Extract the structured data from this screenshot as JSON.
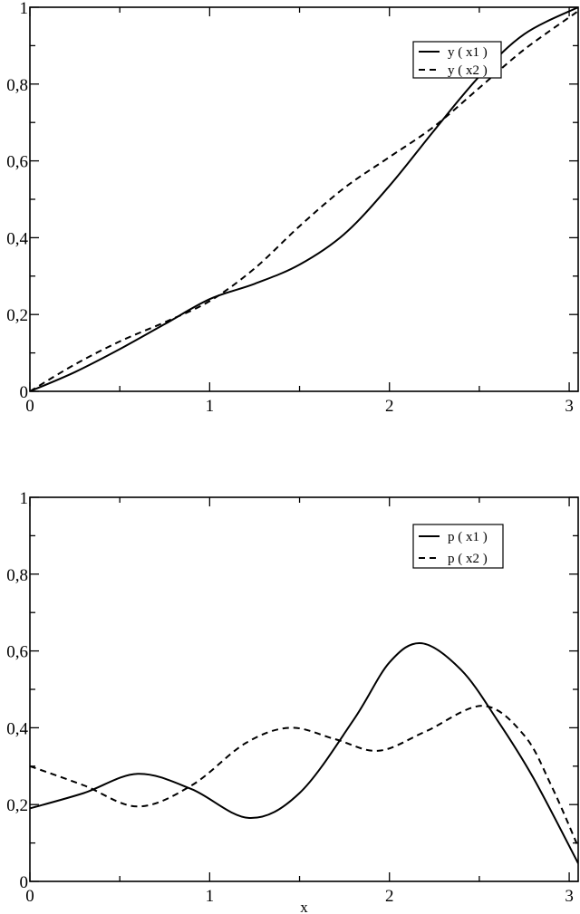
{
  "chart_data": [
    {
      "type": "line",
      "title": "",
      "xlabel": "",
      "ylabel": "",
      "xlim": [
        0,
        3.05
      ],
      "ylim": [
        0,
        1
      ],
      "grid": false,
      "legend_position": "upper right",
      "x_ticks": [
        0,
        1,
        2,
        3
      ],
      "x_tick_labels": [
        "0",
        "1",
        "2",
        "3"
      ],
      "y_ticks": [
        0,
        0.2,
        0.4,
        0.6,
        0.8,
        1
      ],
      "y_tick_labels": [
        "0",
        "0,2",
        "0,4",
        "0,6",
        "0,8",
        "1"
      ],
      "series": [
        {
          "name": "y ( x1 )",
          "style": "solid",
          "x": [
            0,
            0.25,
            0.5,
            0.75,
            1.0,
            1.25,
            1.5,
            1.75,
            2.0,
            2.25,
            2.5,
            2.75,
            3.05
          ],
          "values": [
            0,
            0.05,
            0.11,
            0.175,
            0.24,
            0.28,
            0.33,
            0.41,
            0.535,
            0.68,
            0.82,
            0.93,
            1.0
          ]
        },
        {
          "name": "y ( x2 )",
          "style": "dashed",
          "x": [
            0,
            0.25,
            0.5,
            0.75,
            1.0,
            1.25,
            1.5,
            1.75,
            2.0,
            2.25,
            2.5,
            2.75,
            3.05
          ],
          "values": [
            0,
            0.07,
            0.13,
            0.18,
            0.235,
            0.32,
            0.43,
            0.53,
            0.61,
            0.69,
            0.79,
            0.89,
            0.99
          ]
        }
      ]
    },
    {
      "type": "line",
      "title": "",
      "xlabel": "x",
      "ylabel": "",
      "xlim": [
        0,
        3.05
      ],
      "ylim": [
        0,
        1
      ],
      "grid": false,
      "legend_position": "upper right",
      "x_ticks": [
        0,
        1,
        2,
        3
      ],
      "x_tick_labels": [
        "0",
        "1",
        "2",
        "3"
      ],
      "y_ticks": [
        0,
        0.2,
        0.4,
        0.6,
        0.8,
        1
      ],
      "y_tick_labels": [
        "0",
        "0,2",
        "0,4",
        "0,6",
        "0,8",
        "1"
      ],
      "series": [
        {
          "name": "p ( x1 )",
          "style": "solid",
          "x": [
            0,
            0.3,
            0.6,
            0.9,
            1.22,
            1.5,
            1.8,
            2.0,
            2.18,
            2.4,
            2.6,
            2.8,
            3.05
          ],
          "values": [
            0.19,
            0.23,
            0.28,
            0.24,
            0.165,
            0.23,
            0.42,
            0.57,
            0.62,
            0.55,
            0.42,
            0.27,
            0.047
          ]
        },
        {
          "name": "p ( x2 )",
          "style": "dashed",
          "x": [
            0,
            0.3,
            0.6,
            0.9,
            1.2,
            1.45,
            1.7,
            1.94,
            2.2,
            2.52,
            2.75,
            2.9,
            3.05
          ],
          "values": [
            0.3,
            0.25,
            0.195,
            0.25,
            0.36,
            0.4,
            0.37,
            0.34,
            0.39,
            0.457,
            0.38,
            0.25,
            0.09
          ]
        }
      ]
    }
  ],
  "style": {
    "line_color": "#000000",
    "background": "#ffffff"
  }
}
